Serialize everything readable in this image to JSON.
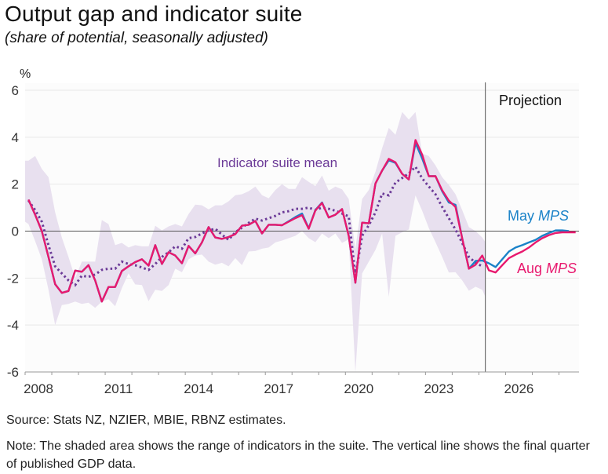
{
  "title": "Output gap and indicator suite",
  "subtitle": "(share of potential, seasonally adjusted)",
  "source": "Source: Stats NZ, NZIER, MBIE, RBNZ estimates.",
  "note": "Note: The shaded area shows the range of indicators in the suite. The vertical line shows the final quarter of published GDP data.",
  "colors": {
    "aug": "#e8196e",
    "may": "#1a82c8",
    "mean": "#6b3a97",
    "band": "#e8e0ef"
  },
  "chart_data": {
    "type": "line",
    "ylabel": "%",
    "ylim": [
      -6,
      6
    ],
    "yticks": [
      6,
      4,
      2,
      0,
      -2,
      -4,
      -6
    ],
    "xlim": [
      2008.0,
      2028.75
    ],
    "xtick_labels": [
      "2008",
      "2011",
      "2014",
      "2017",
      "2020",
      "2023",
      "2026"
    ],
    "x_start": "2008Q1",
    "x_frequency": "quarterly",
    "projection_start_quarter_index": 68,
    "projection_label": "Projection",
    "series": [
      {
        "name": "Aug MPS",
        "label_plain": "Aug",
        "label_italic": "MPS",
        "values": [
          1.34,
          0.7,
          0.0,
          -1.1,
          -2.26,
          -2.63,
          -2.55,
          -1.68,
          -1.73,
          -1.45,
          -2.1,
          -3.0,
          -2.38,
          -2.38,
          -1.7,
          -1.5,
          -1.32,
          -1.2,
          -1.47,
          -0.6,
          -1.4,
          -0.9,
          -1.04,
          -1.37,
          -0.63,
          -0.95,
          -0.48,
          0.17,
          -0.27,
          -0.33,
          -0.25,
          -0.13,
          0.23,
          0.27,
          0.43,
          -0.1,
          0.27,
          0.27,
          0.25,
          0.4,
          0.55,
          0.68,
          0.1,
          0.88,
          1.2,
          0.58,
          0.7,
          0.94,
          -0.2,
          -2.2,
          0.36,
          0.33,
          2.03,
          2.58,
          3.08,
          2.93,
          2.44,
          2.2,
          3.88,
          3.26,
          2.34,
          2.34,
          1.74,
          1.3,
          1.03,
          -0.3,
          -1.6,
          -1.43,
          -1.04,
          -1.67,
          -1.76,
          -1.45,
          -1.15,
          -1.0,
          -0.87,
          -0.7,
          -0.48,
          -0.3,
          -0.17,
          -0.08,
          -0.05,
          -0.05,
          -0.05
        ]
      },
      {
        "name": "May MPS",
        "label_plain": "May",
        "label_italic": "MPS",
        "values": [
          1.34,
          0.7,
          0.0,
          -1.1,
          -2.26,
          -2.63,
          -2.55,
          -1.68,
          -1.73,
          -1.45,
          -2.1,
          -3.0,
          -2.38,
          -2.38,
          -1.7,
          -1.5,
          -1.32,
          -1.2,
          -1.47,
          -0.6,
          -1.4,
          -0.9,
          -1.04,
          -1.37,
          -0.63,
          -0.95,
          -0.48,
          0.17,
          -0.27,
          -0.33,
          -0.25,
          -0.13,
          0.23,
          0.27,
          0.43,
          -0.1,
          0.27,
          0.27,
          0.25,
          0.42,
          0.6,
          0.75,
          0.12,
          0.9,
          1.22,
          0.58,
          0.7,
          0.94,
          -0.2,
          -2.2,
          0.36,
          0.33,
          2.03,
          2.58,
          3.02,
          2.9,
          2.44,
          2.2,
          3.75,
          3.1,
          2.34,
          2.34,
          1.7,
          1.22,
          1.12,
          -0.3,
          -1.6,
          -1.27,
          -1.25,
          -1.37,
          -1.53,
          -1.2,
          -0.87,
          -0.7,
          -0.6,
          -0.48,
          -0.37,
          -0.2,
          -0.08,
          0.03,
          0.03,
          0.0
        ]
      },
      {
        "name": "Indicator suite mean",
        "values": [
          1.3,
          0.9,
          0.4,
          -0.6,
          -1.5,
          -1.8,
          -2.1,
          -2.3,
          -1.9,
          -1.95,
          -1.85,
          -1.65,
          -1.6,
          -1.6,
          -1.3,
          -1.4,
          -1.45,
          -1.55,
          -1.65,
          -1.4,
          -1.1,
          -0.9,
          -0.65,
          -0.75,
          -0.3,
          -0.25,
          -0.1,
          0.03,
          0.1,
          -0.15,
          -0.37,
          -0.05,
          0.15,
          0.35,
          0.53,
          0.45,
          0.55,
          0.65,
          0.8,
          0.85,
          0.95,
          0.95,
          1.0,
          0.9,
          1.0,
          0.95,
          0.87,
          0.75,
          0.63,
          -1.9,
          -0.2,
          0.25,
          0.8,
          1.6,
          1.52,
          2.07,
          2.26,
          2.46,
          2.74,
          2.25,
          1.9,
          1.57,
          1.03,
          0.55,
          0.07,
          -0.5,
          -1.1,
          -1.35,
          -1.5
        ]
      },
      {
        "name": "Indicator range upper",
        "values": [
          3.0,
          3.2,
          2.65,
          2.3,
          0.8,
          -0.27,
          -1.1,
          -2.0,
          -1.3,
          -1.3,
          -1.3,
          0.47,
          0.3,
          -0.6,
          -0.5,
          -0.7,
          -0.6,
          -0.65,
          -0.65,
          0.23,
          0.03,
          0.2,
          0.3,
          0.2,
          0.73,
          1.13,
          1.1,
          0.93,
          1.1,
          1.1,
          1.27,
          1.53,
          1.57,
          1.7,
          1.9,
          1.53,
          1.4,
          1.75,
          2.0,
          1.8,
          1.8,
          2.3,
          2.1,
          1.92,
          2.37,
          1.72,
          1.9,
          1.78,
          1.37,
          -0.77,
          1.37,
          1.75,
          2.53,
          3.53,
          4.4,
          4.1,
          5.07,
          4.75,
          5.07,
          3.3,
          3.2,
          2.8,
          2.3,
          1.97,
          1.57,
          0.9,
          0.17,
          0.0,
          -0.27
        ]
      },
      {
        "name": "Indicator range lower",
        "values": [
          0.3,
          -0.43,
          -1.2,
          -2.5,
          -4.0,
          -3.15,
          -3.1,
          -3.0,
          -3.1,
          -3.05,
          -3.27,
          -3.0,
          -2.9,
          -3.2,
          -2.43,
          -1.8,
          -2.27,
          -2.3,
          -2.98,
          -2.5,
          -2.55,
          -2.3,
          -1.6,
          -1.75,
          -1.2,
          -1.04,
          -1.0,
          -1.3,
          -1.43,
          -1.35,
          -1.5,
          -1.15,
          -1.45,
          -0.87,
          -0.85,
          -0.75,
          -0.7,
          -0.48,
          -0.4,
          -0.3,
          -0.2,
          0.0,
          -0.3,
          -0.47,
          -0.1,
          -0.3,
          -0.1,
          -0.5,
          -0.35,
          -6.0,
          -1.8,
          -1.3,
          -0.8,
          -0.1,
          -2.8,
          -0.2,
          -0.05,
          0.07,
          1.52,
          0.87,
          0.13,
          -0.47,
          -1.1,
          -1.76,
          -1.75,
          -2.1,
          -2.54,
          -2.37,
          -2.5
        ]
      }
    ],
    "annotations": [
      "Indicator suite mean",
      "May MPS",
      "Aug MPS",
      "Projection"
    ]
  }
}
